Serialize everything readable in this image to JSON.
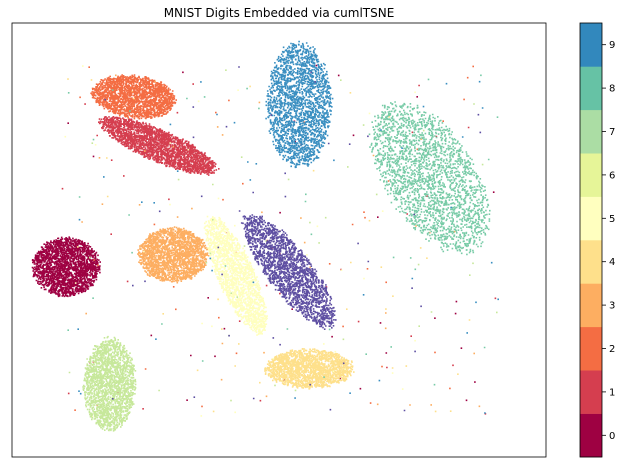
{
  "chart_data": {
    "type": "scatter",
    "title": "MNIST Digits Embedded via cumlTSNE",
    "xlabel": "",
    "ylabel": "",
    "axis_ticks_visible": false,
    "grid": false,
    "colormap": "Spectral",
    "colorbar": {
      "position": "right",
      "ticks": [
        "0",
        "1",
        "2",
        "3",
        "4",
        "5",
        "6",
        "7",
        "8",
        "9"
      ],
      "colors": [
        "#9e0142",
        "#d53e4f",
        "#f46d43",
        "#fdae61",
        "#fee08b",
        "#ffffbf",
        "#e6f598",
        "#abdda4",
        "#66c2a5",
        "#3288bd"
      ]
    },
    "series": [
      {
        "name": "0",
        "color": "#9e0142",
        "cluster": {
          "cx": -41,
          "cy": -5,
          "rx": 7.2,
          "ry": 7.5,
          "n": 2200
        }
      },
      {
        "name": "1",
        "color": "#d53e4f",
        "cluster": {
          "cx": -22,
          "cy": 25,
          "rx": 14,
          "ry": 4,
          "rotation_deg": -28,
          "n": 2400
        }
      },
      {
        "name": "2",
        "color": "#f46d43",
        "cluster": {
          "cx": -27,
          "cy": 37,
          "rx": 9,
          "ry": 5.5,
          "rotation_deg": -10,
          "n": 2000
        }
      },
      {
        "name": "3",
        "color": "#fdae61",
        "cluster": {
          "cx": -19,
          "cy": -2,
          "rx": 7.5,
          "ry": 7,
          "n": 2000
        }
      },
      {
        "name": "4",
        "color": "#fee08b",
        "cluster": {
          "cx": 9,
          "cy": -30,
          "rx": 9.5,
          "ry": 5,
          "n": 1900
        }
      },
      {
        "name": "5",
        "color": "#ffffbf",
        "cluster": {
          "cx": -6,
          "cy": -7,
          "rx": 4,
          "ry": 16,
          "rotation_deg": 20,
          "n": 1800
        }
      },
      {
        "name": "6",
        "color": "#c7e89b",
        "cluster": {
          "cx": -32,
          "cy": -34,
          "rx": 5.6,
          "ry": 12,
          "n": 2000
        }
      },
      {
        "name": "7",
        "color": "#78cba7",
        "cluster": {
          "cx": 34,
          "cy": 17,
          "rx": 10,
          "ry": 21,
          "rotation_deg": 25,
          "n": 2300
        }
      },
      {
        "name": "8",
        "color": "#3a8fc1",
        "cluster": {
          "cx": 7,
          "cy": 35,
          "rx": 7,
          "ry": 16,
          "n": 2200
        }
      },
      {
        "name": "9",
        "color": "#5e4fa2",
        "cluster": {
          "cx": 5,
          "cy": -6,
          "rx": 5,
          "ry": 17,
          "rotation_deg": 32,
          "n": 2000
        }
      }
    ],
    "xlim": [
      -52,
      58
    ],
    "ylim": [
      -52,
      55
    ]
  }
}
